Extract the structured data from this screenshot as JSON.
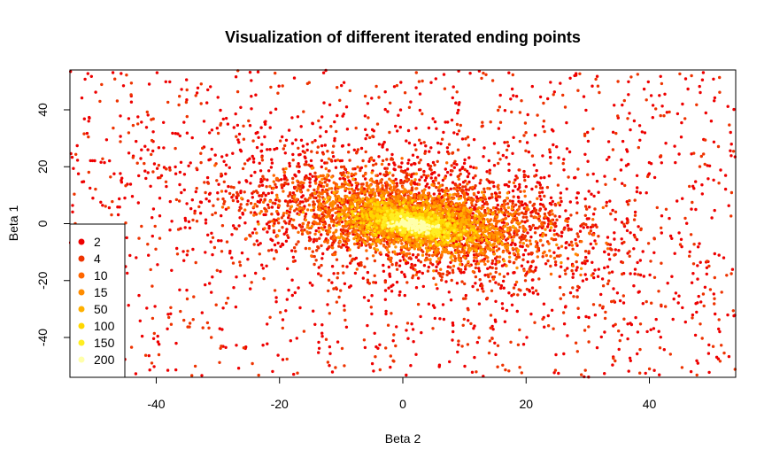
{
  "chart_data": {
    "type": "scatter",
    "title": "Visualization of different iterated ending points",
    "xlabel": "Beta 2",
    "ylabel": "Beta 1",
    "xlim": [
      -54,
      54
    ],
    "ylim": [
      -54,
      54
    ],
    "xticks": [
      -40,
      -20,
      0,
      20,
      40
    ],
    "yticks": [
      -40,
      -20,
      0,
      20,
      40
    ],
    "grid": false,
    "legend_position": "bottom-left",
    "approx_point_count": 7000,
    "series": [
      {
        "name": "2",
        "color": "#ee0000",
        "share": 0.3,
        "spread": 1.0
      },
      {
        "name": "4",
        "color": "#ee3300",
        "share": 0.22,
        "spread": 0.75
      },
      {
        "name": "10",
        "color": "#ff6600",
        "share": 0.16,
        "spread": 0.55
      },
      {
        "name": "15",
        "color": "#ff8c00",
        "share": 0.12,
        "spread": 0.45
      },
      {
        "name": "50",
        "color": "#ffb000",
        "share": 0.08,
        "spread": 0.32
      },
      {
        "name": "100",
        "color": "#ffd700",
        "share": 0.06,
        "spread": 0.22
      },
      {
        "name": "150",
        "color": "#ffee22",
        "share": 0.04,
        "spread": 0.14
      },
      {
        "name": "200",
        "color": "#ffffaa",
        "share": 0.02,
        "spread": 0.08
      }
    ]
  }
}
